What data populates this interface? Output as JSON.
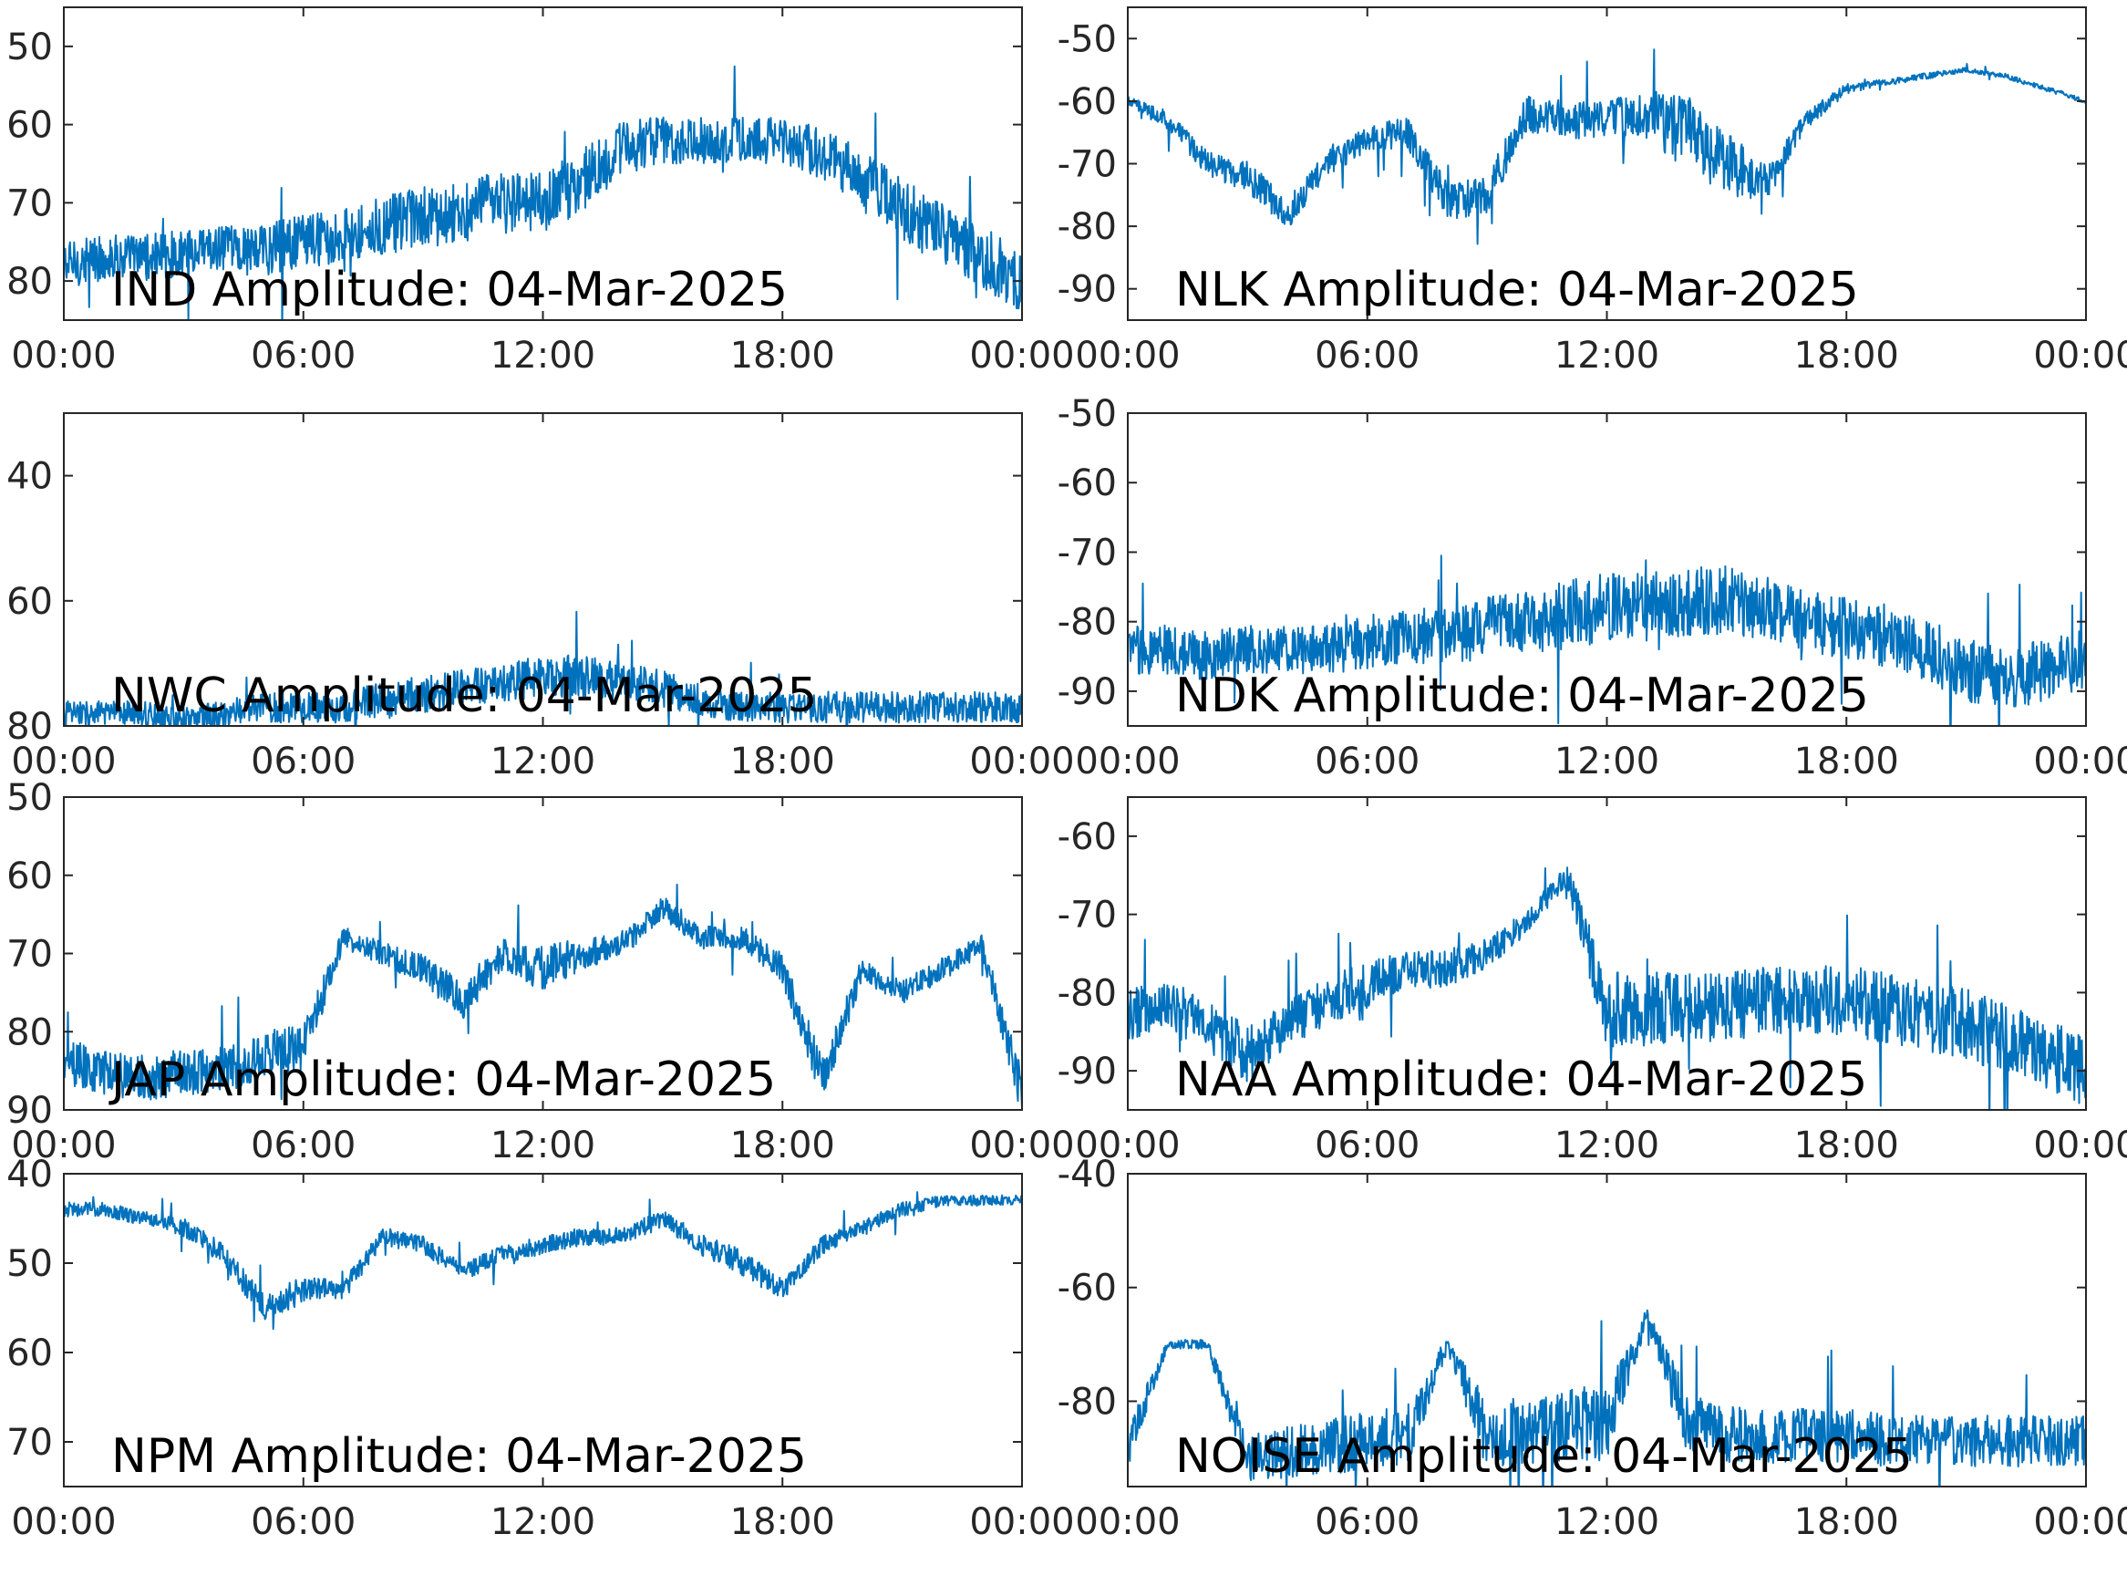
{
  "figure": {
    "line_color": "#0072BD",
    "axis_color": "#262626",
    "background": "#ffffff"
  },
  "chart_data": [
    {
      "type": "line",
      "title": "IND Amplitude: 04-Mar-2025",
      "x_tick_labels": [
        "00:00",
        "06:00",
        "12:00",
        "18:00",
        "00:00"
      ],
      "y_tick_labels": [
        "50",
        "60",
        "70",
        "80"
      ],
      "y_ticks": [
        -50,
        -60,
        -70,
        -80
      ],
      "ylim": [
        -85,
        -45
      ],
      "xlim_hours": [
        0,
        24
      ],
      "series": [
        {
          "x": [
            0,
            1,
            2,
            3,
            4,
            5,
            6,
            7,
            8,
            9,
            10,
            11,
            12,
            13,
            14,
            15,
            16,
            17,
            18,
            19,
            20,
            21,
            22,
            23,
            24
          ],
          "center": [
            -78,
            -77,
            -77,
            -76.5,
            -76,
            -76,
            -75,
            -74,
            -73,
            -72,
            -71,
            -70,
            -70,
            -67,
            -63,
            -62,
            -62,
            -62,
            -62,
            -64,
            -67,
            -71,
            -74,
            -77,
            -80
          ],
          "spread": [
            3,
            3,
            3,
            3,
            3,
            3.5,
            3.5,
            3.5,
            4,
            4,
            4,
            4,
            4,
            4,
            3.5,
            3,
            3,
            3,
            3,
            3.5,
            4,
            4,
            4,
            4,
            4
          ]
        }
      ]
    },
    {
      "type": "line",
      "title": "NLK Amplitude: 04-Mar-2025",
      "x_tick_labels": [
        "00:00",
        "06:00",
        "12:00",
        "18:00",
        "00:00"
      ],
      "y_tick_labels": [
        "-50",
        "-60",
        "-70",
        "-80",
        "-90"
      ],
      "y_ticks": [
        -50,
        -60,
        -70,
        -80,
        -90
      ],
      "ylim": [
        -95,
        -45
      ],
      "xlim_hours": [
        0,
        24
      ],
      "series": [
        {
          "x": [
            0,
            1,
            2,
            3,
            4,
            5,
            6,
            7,
            8,
            9,
            10,
            11,
            12,
            13,
            14,
            15,
            16,
            17,
            18,
            19,
            20,
            21,
            22,
            23,
            24
          ],
          "center": [
            -60,
            -63,
            -70,
            -72,
            -78,
            -70,
            -66,
            -65,
            -76,
            -75,
            -62,
            -63,
            -63,
            -62,
            -65,
            -70,
            -73,
            -63,
            -58,
            -57,
            -56,
            -55,
            -56,
            -58,
            -60
          ],
          "spread": [
            0.8,
            1.5,
            2,
            2.5,
            2.5,
            2,
            2,
            2.5,
            3,
            3,
            3,
            3,
            3,
            4,
            6,
            5,
            3,
            1.5,
            0.8,
            0.5,
            0.5,
            0.4,
            0.4,
            0.4,
            0.4
          ]
        }
      ]
    },
    {
      "type": "line",
      "title": "NWC Amplitude: 04-Mar-2025",
      "x_tick_labels": [
        "00:00",
        "06:00",
        "12:00",
        "18:00",
        "00:00"
      ],
      "y_tick_labels": [
        "40",
        "60",
        "80"
      ],
      "y_ticks": [
        -40,
        -60,
        -80
      ],
      "ylim": [
        -80,
        -30
      ],
      "xlim_hours": [
        0,
        24
      ],
      "series": [
        {
          "x": [
            0,
            1,
            2,
            3,
            4,
            5,
            6,
            7,
            8,
            9,
            10,
            11,
            12,
            13,
            14,
            15,
            16,
            17,
            18,
            19,
            20,
            21,
            22,
            23,
            24
          ],
          "center": [
            -78,
            -78,
            -78,
            -79,
            -78,
            -77,
            -77,
            -77,
            -76,
            -75,
            -74,
            -73,
            -72,
            -72,
            -73,
            -74,
            -76,
            -77,
            -77,
            -77,
            -77,
            -77,
            -77,
            -77,
            -77
          ],
          "spread": [
            2,
            2,
            2,
            2,
            2,
            2.5,
            2.5,
            2.5,
            3,
            3,
            3,
            3,
            3.5,
            3.5,
            3,
            3,
            2.5,
            2.5,
            2.5,
            2.5,
            2.5,
            2.5,
            2.5,
            2.5,
            2.5
          ]
        }
      ]
    },
    {
      "type": "line",
      "title": "NDK Amplitude: 04-Mar-2025",
      "x_tick_labels": [
        "00:00",
        "06:00",
        "12:00",
        "18:00",
        "00:00"
      ],
      "y_tick_labels": [
        "-50",
        "-60",
        "-70",
        "-80",
        "-90"
      ],
      "y_ticks": [
        -50,
        -60,
        -70,
        -80,
        -90
      ],
      "ylim": [
        -95,
        -50
      ],
      "xlim_hours": [
        0,
        24
      ],
      "series": [
        {
          "x": [
            0,
            1,
            2,
            3,
            4,
            5,
            6,
            7,
            8,
            9,
            10,
            11,
            12,
            13,
            14,
            15,
            16,
            17,
            18,
            19,
            20,
            21,
            22,
            23,
            24
          ],
          "center": [
            -84,
            -84,
            -85,
            -84,
            -84,
            -84,
            -83,
            -82,
            -82,
            -81,
            -80,
            -79,
            -78,
            -78,
            -77,
            -77,
            -78,
            -80,
            -81,
            -82,
            -84,
            -87,
            -88,
            -87,
            -85
          ],
          "spread": [
            3.5,
            3.5,
            3.5,
            3.5,
            3.5,
            3.5,
            4,
            4,
            4,
            4.5,
            4.5,
            5,
            5,
            5,
            5,
            5,
            4.5,
            4.5,
            4.5,
            4.5,
            4.5,
            4.5,
            4.5,
            4.5,
            4.5
          ]
        }
      ]
    },
    {
      "type": "line",
      "title": "JAP Amplitude: 04-Mar-2025",
      "x_tick_labels": [
        "00:00",
        "06:00",
        "12:00",
        "18:00",
        "00:00"
      ],
      "y_tick_labels": [
        "50",
        "60",
        "70",
        "80",
        "90"
      ],
      "y_ticks": [
        -50,
        -60,
        -70,
        -80,
        -90
      ],
      "ylim": [
        -90,
        -50
      ],
      "xlim_hours": [
        0,
        24
      ],
      "series": [
        {
          "x": [
            0,
            1,
            2,
            3,
            4,
            5,
            6,
            7,
            8,
            9,
            10,
            11,
            12,
            13,
            14,
            15,
            16,
            17,
            18,
            19,
            20,
            21,
            22,
            23,
            24
          ],
          "center": [
            -84,
            -85,
            -86,
            -85,
            -85,
            -83,
            -82,
            -68,
            -70,
            -72,
            -76,
            -70,
            -72,
            -70,
            -69,
            -64,
            -68,
            -68,
            -72,
            -86,
            -72,
            -75,
            -72,
            -69,
            -88
          ],
          "spread": [
            3,
            3,
            3,
            3,
            3,
            3,
            3,
            1.5,
            1.5,
            2,
            2.5,
            2,
            3,
            2,
            1.5,
            1.5,
            1.5,
            1.5,
            2,
            3,
            1.5,
            1.5,
            1.5,
            1.5,
            3
          ]
        }
      ]
    },
    {
      "type": "line",
      "title": "NAA Amplitude: 04-Mar-2025",
      "x_tick_labels": [
        "00:00",
        "06:00",
        "12:00",
        "18:00",
        "00:00"
      ],
      "y_tick_labels": [
        "-60",
        "-70",
        "-80",
        "-90"
      ],
      "y_ticks": [
        -60,
        -70,
        -80,
        -90
      ],
      "ylim": [
        -95,
        -55
      ],
      "xlim_hours": [
        0,
        24
      ],
      "series": [
        {
          "x": [
            0,
            1,
            2,
            3,
            4,
            5,
            6,
            7,
            8,
            9,
            10,
            11,
            12,
            13,
            14,
            15,
            16,
            17,
            18,
            19,
            20,
            21,
            22,
            23,
            24
          ],
          "center": [
            -83,
            -82,
            -84,
            -88,
            -84,
            -81,
            -79,
            -77,
            -77,
            -75,
            -71,
            -65,
            -82,
            -82,
            -82,
            -82,
            -81,
            -81,
            -81,
            -82,
            -83,
            -84,
            -86,
            -88,
            -90
          ],
          "spread": [
            3.5,
            3.5,
            3.5,
            3.5,
            3,
            3,
            3,
            2.5,
            2.5,
            2,
            1.5,
            1.5,
            5,
            5,
            4.5,
            4.5,
            4.5,
            4.5,
            4.5,
            4.5,
            4.5,
            4.5,
            4.5,
            4.5,
            4.5
          ]
        }
      ]
    },
    {
      "type": "line",
      "title": "NPM Amplitude: 04-Mar-2025",
      "x_tick_labels": [
        "00:00",
        "06:00",
        "12:00",
        "18:00",
        "00:00"
      ],
      "y_tick_labels": [
        "40",
        "50",
        "60",
        "70"
      ],
      "y_ticks": [
        -40,
        -50,
        -60,
        -70
      ],
      "ylim": [
        -75,
        -40
      ],
      "xlim_hours": [
        0,
        24
      ],
      "series": [
        {
          "x": [
            0,
            1,
            2,
            3,
            4,
            5,
            6,
            7,
            8,
            9,
            10,
            11,
            12,
            13,
            14,
            15,
            16,
            17,
            18,
            19,
            20,
            21,
            22,
            23,
            24
          ],
          "center": [
            -44,
            -44,
            -45,
            -46,
            -49,
            -55,
            -53,
            -53,
            -47,
            -48,
            -51,
            -49,
            -48,
            -47,
            -47,
            -45,
            -48,
            -50,
            -53,
            -48,
            -46,
            -44,
            -43,
            -43,
            -43
          ],
          "spread": [
            0.8,
            0.8,
            0.8,
            1,
            1.2,
            1.5,
            1.5,
            1.2,
            1,
            1,
            1,
            1,
            1,
            1,
            1,
            1,
            1.2,
            1.5,
            1.2,
            1,
            0.8,
            0.8,
            0.6,
            0.6,
            0.6
          ]
        }
      ]
    },
    {
      "type": "line",
      "title": "NOISE Amplitude: 04-Mar-2025",
      "x_tick_labels": [
        "00:00",
        "06:00",
        "12:00",
        "18:00",
        "00:00"
      ],
      "y_tick_labels": [
        "-40",
        "-60",
        "-80"
      ],
      "y_ticks": [
        -40,
        -60,
        -80
      ],
      "ylim": [
        -95,
        -40
      ],
      "xlim_hours": [
        0,
        24
      ],
      "series": [
        {
          "x": [
            0,
            1,
            2,
            3,
            4,
            5,
            6,
            7,
            8,
            9,
            10,
            11,
            12,
            13,
            14,
            15,
            16,
            17,
            18,
            19,
            20,
            21,
            22,
            23,
            24
          ],
          "center": [
            -88,
            -70,
            -70,
            -90,
            -89,
            -88,
            -87,
            -86,
            -70,
            -86,
            -85,
            -84,
            -84,
            -65,
            -84,
            -86,
            -86,
            -86,
            -86,
            -87,
            -87,
            -87,
            -87,
            -87,
            -87
          ],
          "spread": [
            4,
            0.8,
            0.8,
            4,
            4.5,
            5,
            5,
            5.5,
            1.5,
            6,
            6,
            6.5,
            6.5,
            1.5,
            6,
            5,
            5,
            5,
            5,
            4.5,
            4.5,
            4.5,
            4.5,
            4.5,
            4.5
          ]
        }
      ]
    }
  ]
}
